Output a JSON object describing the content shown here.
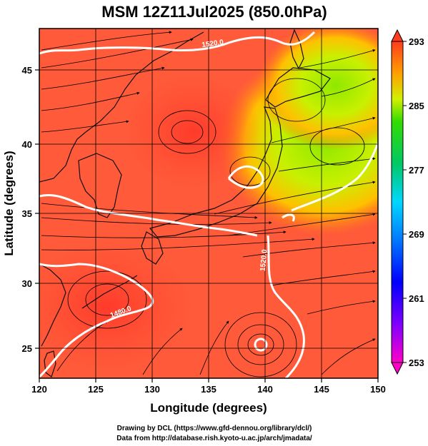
{
  "figure": {
    "title": "MSM 12Z11Jul2025 (850.0hPa)",
    "xlabel": "Longitude (degrees)",
    "ylabel": "Latitude  (degrees)",
    "credit_line1": "Drawing by DCL (https://www.gfd-dennou.org/library/dcl/)",
    "credit_line2": "Data from http://database.rish.kyoto-u.ac.jp/arch/jmadata/"
  },
  "map": {
    "lon_range": [
      120,
      150
    ],
    "lat_range": [
      22.5,
      47.6
    ],
    "x_ticks": [
      "120",
      "125",
      "130",
      "135",
      "140",
      "145",
      "150"
    ],
    "y_ticks": [
      "25",
      "30",
      "35",
      "40",
      "45"
    ],
    "grid": true,
    "contour_labels": [
      "1520.0",
      "1480.0",
      "1520.0"
    ]
  },
  "colorbar": {
    "range": [
      253,
      293
    ],
    "tick_labels": [
      "293",
      "285",
      "277",
      "269",
      "261",
      "253"
    ],
    "colors": [
      "#ff00c8",
      "#0000ff",
      "#00d7ff",
      "#00c864",
      "#32dc00",
      "#f0ff00",
      "#ffa000",
      "#ff3c1e",
      "#ff5050"
    ]
  }
}
